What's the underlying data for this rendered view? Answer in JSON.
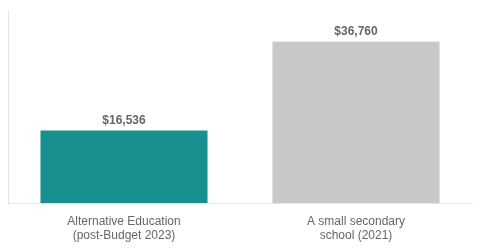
{
  "chart_data": {
    "type": "bar",
    "categories": [
      "Alternative Education\n(post-Budget 2023)",
      "A small secondary\nschool (2021)"
    ],
    "values": [
      16536,
      36760
    ],
    "value_labels": [
      "$16,536",
      "$36,760"
    ],
    "colors": [
      "#1a8f8f",
      "#C8C8C8"
    ],
    "ylim": [
      0,
      44000
    ],
    "grid": false,
    "data_labels": true,
    "tick_labels": "x"
  }
}
